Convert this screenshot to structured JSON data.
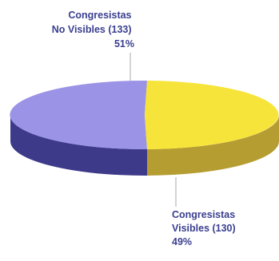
{
  "chart_data": {
    "type": "pie",
    "style": "3d",
    "title": "",
    "legend": "none",
    "slices": [
      {
        "name": "Congresistas No Visibles",
        "value": 133,
        "percent": 51,
        "color": "#9b93e6",
        "side_color": "#3d3a8a",
        "label_lines": [
          "Congresistas",
          "No Visibles (133)",
          "51%"
        ]
      },
      {
        "name": "Congresistas Visibles",
        "value": 130,
        "percent": 49,
        "color": "#f7e43a",
        "side_color": "#b59d32",
        "label_lines": [
          "Congresistas",
          "Visibles (130)",
          "49%"
        ]
      }
    ],
    "label_color": "#3a3f8f",
    "leader_line_color": "#aaaaaa"
  }
}
